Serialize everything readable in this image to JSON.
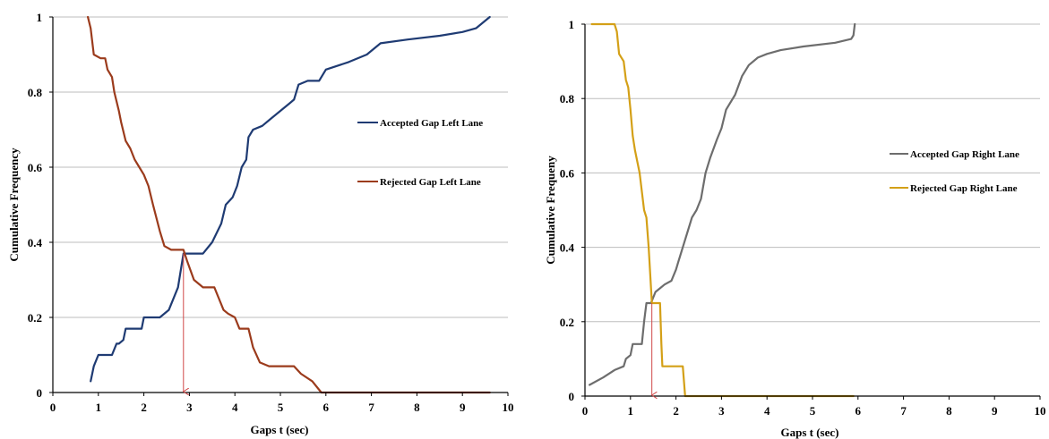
{
  "chart_data": [
    {
      "type": "line",
      "xlabel": "Gaps t (sec)",
      "ylabel": "Cumulative Frequency",
      "xlim": [
        0,
        10
      ],
      "ylim": [
        0,
        1
      ],
      "xticks": [
        "0",
        "1",
        "2",
        "3",
        "4",
        "5",
        "6",
        "7",
        "8",
        "9",
        "10"
      ],
      "yticks": [
        "0",
        "0.2",
        "0.4",
        "0.6",
        "0.8",
        "1"
      ],
      "grid": "horizontal",
      "legend": "right",
      "annotation": {
        "type": "arrow",
        "x": 2.87,
        "y_from": 0.37,
        "y_to": 0
      },
      "series": [
        {
          "name": "Accepted Gap Left Lane",
          "color": "#1f3b73",
          "x": [
            0.83,
            0.9,
            1.0,
            1.1,
            1.3,
            1.4,
            1.45,
            1.55,
            1.6,
            1.7,
            1.95,
            2.0,
            2.2,
            2.35,
            2.55,
            2.75,
            2.87,
            3.0,
            3.3,
            3.5,
            3.7,
            3.8,
            3.95,
            4.05,
            4.15,
            4.25,
            4.3,
            4.4,
            4.6,
            4.8,
            5.0,
            5.2,
            5.3,
            5.4,
            5.6,
            5.85,
            6.0,
            6.5,
            6.9,
            7.2,
            7.8,
            8.5,
            9.0,
            9.3,
            9.6
          ],
          "y": [
            0.03,
            0.07,
            0.1,
            0.1,
            0.1,
            0.13,
            0.13,
            0.14,
            0.17,
            0.17,
            0.17,
            0.2,
            0.2,
            0.2,
            0.22,
            0.28,
            0.37,
            0.37,
            0.37,
            0.4,
            0.45,
            0.5,
            0.52,
            0.55,
            0.6,
            0.62,
            0.68,
            0.7,
            0.71,
            0.73,
            0.75,
            0.77,
            0.78,
            0.82,
            0.83,
            0.83,
            0.86,
            0.88,
            0.9,
            0.93,
            0.94,
            0.95,
            0.96,
            0.97,
            1.0
          ]
        },
        {
          "name": "Rejected Gap Left Lane",
          "color": "#9b3b1c",
          "x": [
            0.77,
            0.83,
            0.9,
            1.05,
            1.15,
            1.2,
            1.3,
            1.35,
            1.45,
            1.5,
            1.6,
            1.7,
            1.8,
            1.9,
            2.0,
            2.1,
            2.2,
            2.35,
            2.45,
            2.6,
            2.87,
            2.95,
            3.1,
            3.3,
            3.55,
            3.65,
            3.75,
            3.85,
            4.0,
            4.1,
            4.3,
            4.4,
            4.55,
            4.75,
            5.0,
            5.2,
            5.3,
            5.45,
            5.7,
            5.9,
            9.6
          ],
          "y": [
            1.0,
            0.97,
            0.9,
            0.89,
            0.89,
            0.86,
            0.84,
            0.8,
            0.75,
            0.72,
            0.67,
            0.65,
            0.62,
            0.6,
            0.58,
            0.55,
            0.5,
            0.43,
            0.39,
            0.38,
            0.38,
            0.35,
            0.3,
            0.28,
            0.28,
            0.25,
            0.22,
            0.21,
            0.2,
            0.17,
            0.17,
            0.12,
            0.08,
            0.07,
            0.07,
            0.07,
            0.07,
            0.05,
            0.03,
            0.0,
            0.0
          ]
        }
      ]
    },
    {
      "type": "line",
      "xlabel": "Gaps t (sec)",
      "ylabel": "Cumulative Frequeny",
      "xlim": [
        0,
        10
      ],
      "ylim": [
        0,
        1
      ],
      "xticks": [
        "0",
        "1",
        "2",
        "3",
        "4",
        "5",
        "6",
        "7",
        "8",
        "9",
        "10"
      ],
      "yticks": [
        "0",
        "0.2",
        "0.4",
        "0.6",
        "0.8",
        "1"
      ],
      "grid": "horizontal",
      "legend": "right",
      "annotation": {
        "type": "arrow",
        "x": 1.47,
        "y_from": 0.25,
        "y_to": 0
      },
      "series": [
        {
          "name": "Accepted Gap Right Lane",
          "color": "#6d6d6d",
          "x": [
            0.1,
            0.4,
            0.65,
            0.85,
            0.9,
            1.0,
            1.05,
            1.2,
            1.25,
            1.3,
            1.35,
            1.4,
            1.45,
            1.55,
            1.65,
            1.75,
            1.9,
            2.0,
            2.05,
            2.15,
            2.25,
            2.35,
            2.45,
            2.55,
            2.65,
            2.75,
            2.9,
            3.0,
            3.1,
            3.3,
            3.45,
            3.6,
            3.8,
            4.0,
            4.3,
            4.8,
            5.5,
            5.85,
            5.9,
            5.93
          ],
          "y": [
            0.03,
            0.05,
            0.07,
            0.08,
            0.1,
            0.11,
            0.14,
            0.14,
            0.14,
            0.2,
            0.25,
            0.25,
            0.25,
            0.28,
            0.29,
            0.3,
            0.31,
            0.34,
            0.36,
            0.4,
            0.44,
            0.48,
            0.5,
            0.53,
            0.6,
            0.64,
            0.69,
            0.72,
            0.77,
            0.81,
            0.86,
            0.89,
            0.91,
            0.92,
            0.93,
            0.94,
            0.95,
            0.96,
            0.97,
            1.0
          ]
        },
        {
          "name": "Rejected Gap Right Lane",
          "color": "#d4a017",
          "x": [
            0.15,
            0.6,
            0.65,
            0.7,
            0.75,
            0.85,
            0.9,
            0.95,
            1.0,
            1.05,
            1.1,
            1.2,
            1.3,
            1.35,
            1.4,
            1.47,
            1.5,
            1.65,
            1.68,
            1.7,
            2.1,
            2.15,
            2.2,
            5.9
          ],
          "y": [
            1.0,
            1.0,
            1.0,
            0.98,
            0.92,
            0.9,
            0.85,
            0.83,
            0.77,
            0.7,
            0.66,
            0.6,
            0.5,
            0.48,
            0.4,
            0.25,
            0.25,
            0.25,
            0.14,
            0.08,
            0.08,
            0.08,
            0.0,
            0.0
          ]
        }
      ]
    }
  ]
}
